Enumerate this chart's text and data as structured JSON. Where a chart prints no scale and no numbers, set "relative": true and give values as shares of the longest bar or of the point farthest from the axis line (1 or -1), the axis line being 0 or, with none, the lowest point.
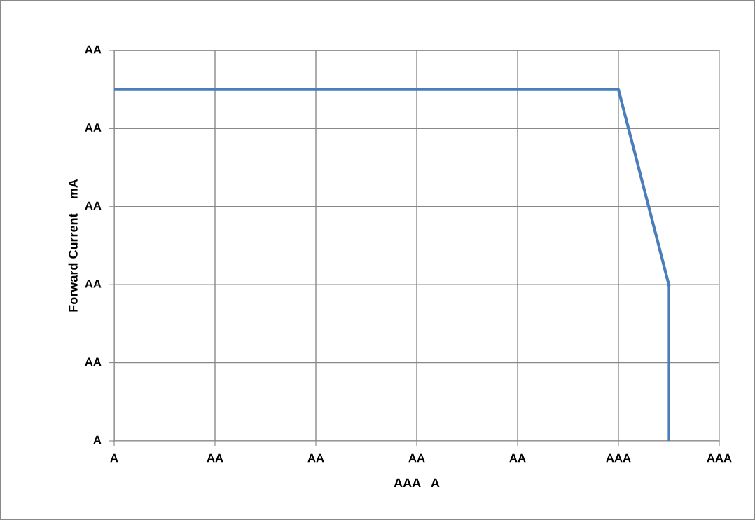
{
  "chart_data": {
    "type": "line",
    "xlabel": "AAA   A",
    "ylabel": "Forward Current    mA",
    "relative": true,
    "categories": [
      "A",
      null,
      "AA",
      null,
      "AA",
      null,
      "AA",
      null,
      "AA",
      null,
      "AAA",
      null,
      "AAA"
    ],
    "series": [
      {
        "color": "#4a7ebb",
        "values": [
          1,
          1,
          1,
          1,
          1,
          1,
          1,
          1,
          1,
          1,
          1,
          0.444,
          null
        ]
      },
      {
        "type": "bar",
        "color": "#4a7ebb",
        "values": [
          null,
          null,
          null,
          null,
          null,
          null,
          null,
          null,
          null,
          null,
          null,
          0.444,
          null
        ]
      }
    ],
    "annotations": [
      "A",
      "AA",
      "AA",
      "AA",
      "AA",
      "AA"
    ],
    "grid": true,
    "marker": "none",
    "line_style": "solid"
  }
}
